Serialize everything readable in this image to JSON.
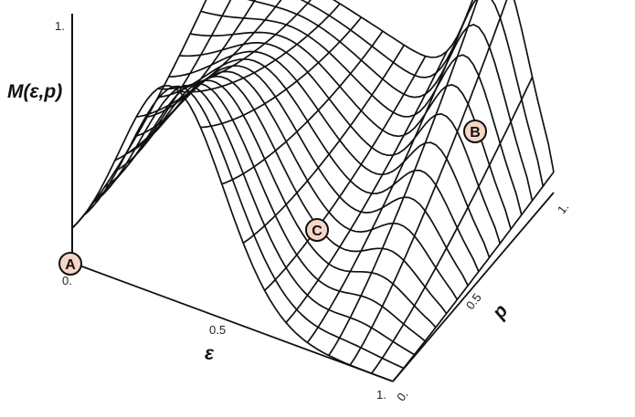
{
  "figure": {
    "z_axis": {
      "title": "M(ε,p)",
      "tick_top": "1.",
      "tick_origin": "0."
    },
    "x_axis": {
      "title": "ε",
      "tick_mid": "0.5",
      "tick_end": "1."
    },
    "y_axis": {
      "title": "p",
      "tick_start": "0.",
      "tick_mid": "0.5",
      "tick_end": "1."
    },
    "markers": [
      {
        "id": "A",
        "label": "A",
        "fill": "#f6d7c7"
      },
      {
        "id": "B",
        "label": "B",
        "fill": "#f6d7c7"
      },
      {
        "id": "C",
        "label": "C",
        "fill": "#f6d7c7"
      }
    ]
  }
}
